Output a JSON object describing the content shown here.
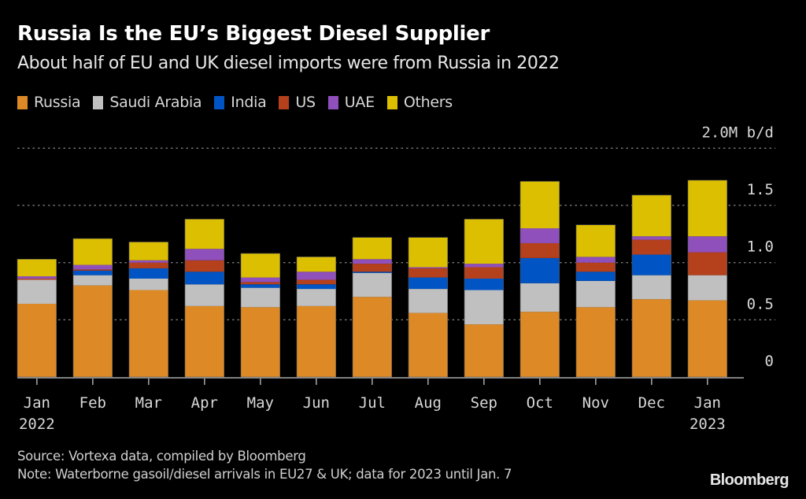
{
  "header": {
    "title": "Russia Is the EU’s Biggest Diesel Supplier",
    "subtitle": "About half of EU and UK diesel imports were from Russia in 2022"
  },
  "footer": {
    "source": "Source: Vortexa data, compiled by Bloomberg",
    "note": "Note: Waterborne gasoil/diesel arrivals in EU27 & UK; data for 2023 until Jan. 7",
    "brand": "Bloomberg"
  },
  "chart_data": {
    "type": "bar",
    "stacked": true,
    "title": "Russia Is the EU’s Biggest Diesel Supplier",
    "subtitle": "About half of EU and UK diesel imports were from Russia in 2022",
    "xlabel": "",
    "ylabel": "M b/d",
    "unit_label": "2.0M b/d",
    "ylim": [
      0,
      2.0
    ],
    "yticks": [
      0,
      0.5,
      1.0,
      1.5,
      2.0
    ],
    "ytick_labels": [
      "0",
      "0.5",
      "1.0",
      "1.5",
      "2.0M b/d"
    ],
    "grid": true,
    "legend_position": "top-left",
    "categories": [
      "Jan",
      "Feb",
      "Mar",
      "Apr",
      "May",
      "Jun",
      "Jul",
      "Aug",
      "Sep",
      "Oct",
      "Nov",
      "Dec",
      "Jan"
    ],
    "category_sublabels": [
      "2022",
      "",
      "",
      "",
      "",
      "",
      "",
      "",
      "",
      "",
      "",
      "",
      "2023"
    ],
    "series": [
      {
        "name": "Russia",
        "color": "#dd8a26",
        "values": [
          0.64,
          0.8,
          0.76,
          0.62,
          0.61,
          0.62,
          0.7,
          0.56,
          0.46,
          0.57,
          0.61,
          0.68,
          0.67
        ]
      },
      {
        "name": "Saudi Arabia",
        "color": "#c0c0c0",
        "values": [
          0.21,
          0.09,
          0.1,
          0.19,
          0.17,
          0.15,
          0.21,
          0.21,
          0.3,
          0.25,
          0.23,
          0.21,
          0.22
        ]
      },
      {
        "name": "India",
        "color": "#0054c4",
        "values": [
          0.0,
          0.04,
          0.09,
          0.11,
          0.03,
          0.04,
          0.01,
          0.1,
          0.1,
          0.22,
          0.08,
          0.18,
          0.0
        ]
      },
      {
        "name": "US",
        "color": "#b5401c",
        "values": [
          0.01,
          0.01,
          0.05,
          0.1,
          0.02,
          0.04,
          0.07,
          0.08,
          0.1,
          0.13,
          0.08,
          0.13,
          0.2
        ]
      },
      {
        "name": "UAE",
        "color": "#9050bc",
        "values": [
          0.02,
          0.04,
          0.02,
          0.1,
          0.04,
          0.07,
          0.04,
          0.01,
          0.03,
          0.13,
          0.05,
          0.03,
          0.14
        ]
      },
      {
        "name": "Others",
        "color": "#dcbf00",
        "values": [
          0.15,
          0.23,
          0.16,
          0.26,
          0.21,
          0.13,
          0.19,
          0.26,
          0.39,
          0.41,
          0.28,
          0.36,
          0.49
        ]
      }
    ]
  }
}
